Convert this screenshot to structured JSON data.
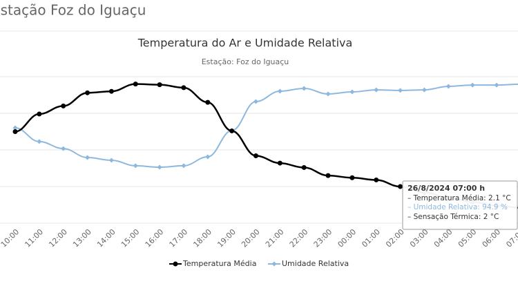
{
  "page_title": "Estação Foz do Iguaçu",
  "chart_data": {
    "type": "line",
    "title": "Temperatura do Ar e Umidade Relativa",
    "subtitle": "Estação: Foz do Iguaçu",
    "categories": [
      "10:00",
      "11:00",
      "12:00",
      "13:00",
      "14:00",
      "15:00",
      "16:00",
      "17:00",
      "18:00",
      "19:00",
      "20:00",
      "21:00",
      "22:00",
      "23:00",
      "00:00",
      "01:00",
      "02:00",
      "03:00",
      "04:00",
      "05:00",
      "06:00",
      "07:00"
    ],
    "ylim": [
      0,
      20
    ],
    "y2lim": [
      0,
      100
    ],
    "grid_lines": [
      0,
      5,
      10,
      15,
      20
    ],
    "series": [
      {
        "name": "Temperatura Média",
        "color": "#000000",
        "marker": "circle",
        "values": [
          12.5,
          14.9,
          16.0,
          17.8,
          18.0,
          19.0,
          18.9,
          18.5,
          16.5,
          12.6,
          9.2,
          8.2,
          7.6,
          6.5,
          6.2,
          5.9,
          5.0,
          4.2,
          3.5,
          2.9,
          2.4,
          2.1
        ]
      },
      {
        "name": "Umidade Relativa",
        "color": "#8cb8df",
        "marker": "diamond",
        "axis": "y2",
        "values": [
          65.1,
          55.7,
          50.9,
          44.8,
          42.9,
          39.2,
          38.2,
          39.2,
          45.3,
          63.2,
          83.0,
          90.1,
          92.0,
          88.2,
          89.6,
          91.0,
          90.6,
          91.0,
          93.4,
          94.3,
          94.3,
          94.9
        ]
      }
    ],
    "tooltip": {
      "title": "26/8/2024 07:00 h",
      "lines": [
        "– Temperatura Média: 2.1 °C",
        "– Umidade Relativa: 94.9 %",
        "– Sensação Térmica: 2 °C"
      ]
    }
  }
}
